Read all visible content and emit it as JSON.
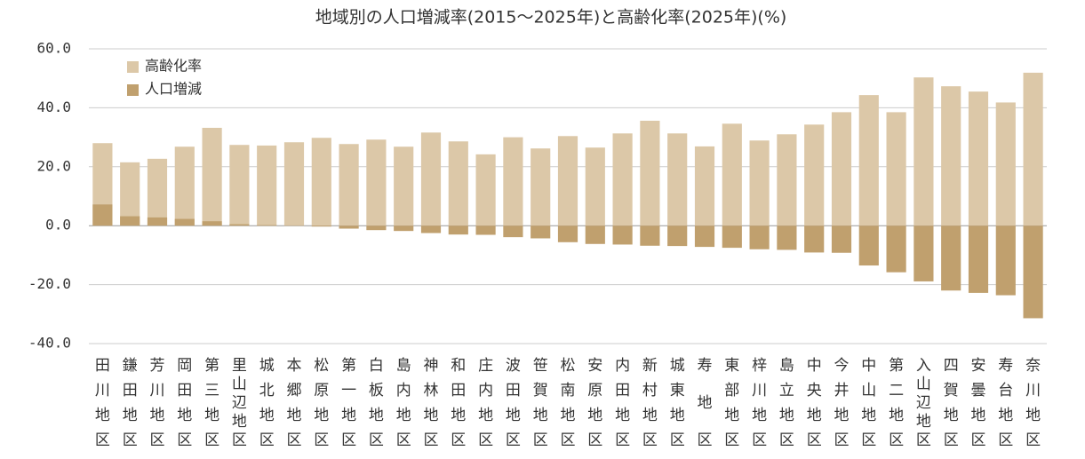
{
  "chart_data": {
    "type": "bar",
    "title": "地域別の人口増減率(2015～2025年)と高齢化率(2025年)(%)",
    "categories": [
      "田川地区",
      "鎌田地区",
      "芳川地区",
      "岡田地区",
      "第三地区",
      "里山辺地区",
      "城北地区",
      "本郷地区",
      "松原地区",
      "第一地区",
      "白板地区",
      "島内地区",
      "神林地区",
      "和田地区",
      "庄内地区",
      "波田地区",
      "笹賀地区",
      "松南地区",
      "安原地区",
      "内田地区",
      "新村地区",
      "城東地区",
      "寿地区",
      "東部地区",
      "梓川地区",
      "島立地区",
      "中央地区",
      "今井地区",
      "中山地区",
      "第二地区",
      "入山辺地区",
      "四賀地区",
      "安曇地区",
      "寿台地区",
      "奈川地区"
    ],
    "series": [
      {
        "name": "高齢化率",
        "color": "#dcc8a8",
        "values": [
          28.0,
          21.5,
          22.7,
          26.8,
          33.2,
          27.4,
          27.2,
          28.3,
          29.8,
          27.7,
          29.2,
          26.8,
          31.6,
          28.6,
          24.2,
          30.0,
          26.2,
          30.4,
          26.5,
          31.3,
          35.6,
          31.3,
          26.9,
          34.6,
          28.9,
          31.0,
          34.3,
          38.5,
          44.3,
          38.5,
          50.3,
          47.3,
          45.5,
          41.8,
          51.9
        ]
      },
      {
        "name": "人口増減",
        "color": "#c0a06e",
        "values": [
          7.2,
          3.2,
          2.8,
          2.3,
          1.5,
          0.5,
          0.2,
          0.1,
          -0.3,
          -1.0,
          -1.5,
          -1.8,
          -2.5,
          -3.0,
          -3.1,
          -3.9,
          -4.3,
          -5.6,
          -6.2,
          -6.4,
          -6.8,
          -6.9,
          -7.2,
          -7.5,
          -8.0,
          -8.2,
          -9.1,
          -9.2,
          -13.5,
          -15.8,
          -18.9,
          -22.0,
          -22.8,
          -23.6,
          -31.4
        ]
      }
    ],
    "ylim": [
      -40,
      60
    ],
    "yticks": [
      {
        "value": -40,
        "label": "-40.0"
      },
      {
        "value": -20,
        "label": "-20.0"
      },
      {
        "value": 0,
        "label": "0.0"
      },
      {
        "value": 20,
        "label": "20.0"
      },
      {
        "value": 40,
        "label": "40.0"
      },
      {
        "value": 60,
        "label": "60.0"
      }
    ],
    "grid": true,
    "legend": "upper-left"
  }
}
